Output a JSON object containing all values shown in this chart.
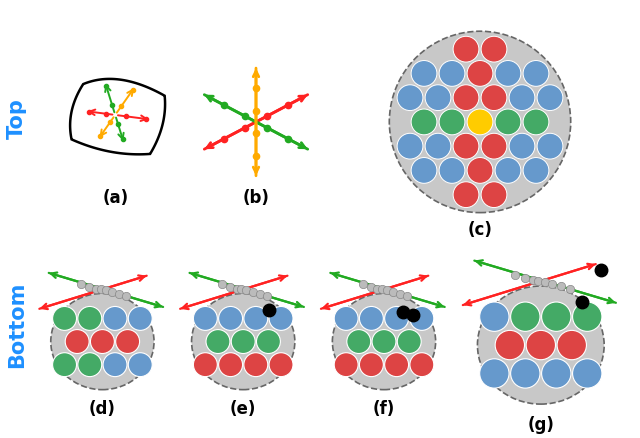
{
  "top_label": "Top",
  "bottom_label": "Bottom",
  "label_color": "#1E90FF",
  "subplot_labels": [
    "(a)",
    "(b)",
    "(c)",
    "(d)",
    "(e)",
    "(f)",
    "(g)"
  ],
  "label_fontsize": 12,
  "colors": {
    "blue": "#6699CC",
    "red": "#DD4444",
    "green": "#44AA66",
    "yellow": "#FFCC00",
    "light_gray": "#C8C8C8",
    "white": "#FFFFFF"
  },
  "arrow_colors": {
    "red": "#FF2222",
    "green": "#22AA22",
    "yellow": "#FFAA00"
  }
}
